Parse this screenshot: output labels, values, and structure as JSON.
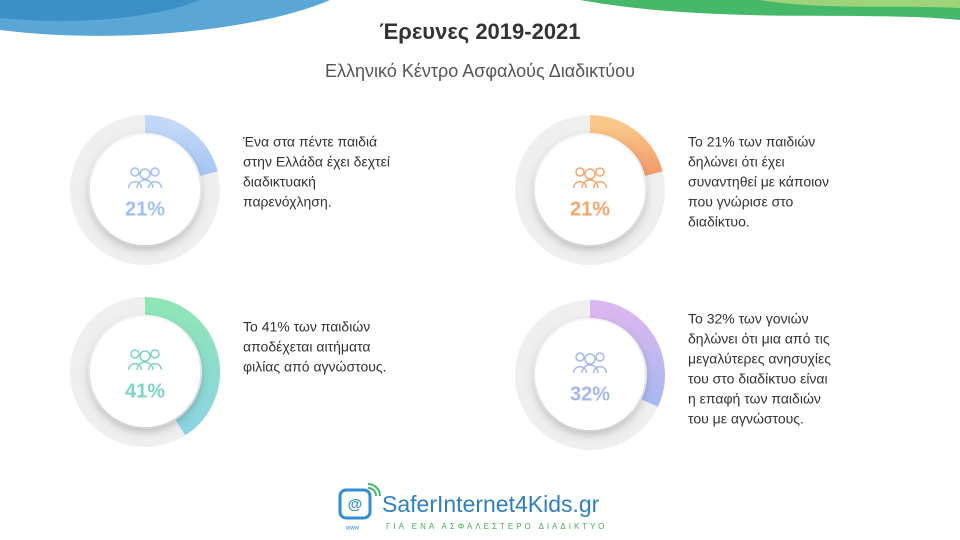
{
  "title": "Έρευνες 2019-2021",
  "subtitle": "Ελληνικό Κέντρο Ασφαλούς Διαδικτύου",
  "cards": [
    {
      "value": 21,
      "value_label": "21%",
      "colors": [
        "#c3d8f8",
        "#a6c6f3"
      ],
      "text_color": "#9fc0f0",
      "lines": [
        "Ένα στα πέντε παιδιά",
        "στην Ελλάδα  έχει δεχτεί",
        "διαδικτυακή",
        "παρενόχληση."
      ]
    },
    {
      "value": 21,
      "value_label": "21%",
      "colors": [
        "#f9c98a",
        "#f39a6a"
      ],
      "text_color": "#f4a66c",
      "lines": [
        "Το 21% των παιδιών",
        "δηλώνει ότι έχει",
        "συναντηθεί με κάποιον",
        "που γνώρισε στο",
        "διαδίκτυο."
      ]
    },
    {
      "value": 41,
      "value_label": "41%",
      "colors": [
        "#8ee6b6",
        "#8dd3e3"
      ],
      "text_color": "#7fd3c8",
      "lines": [
        "Το 41% των παιδιών",
        "αποδέχεται αιτήματα",
        "φιλίας από αγνώστους."
      ]
    },
    {
      "value": 32,
      "value_label": "32%",
      "colors": [
        "#dcb6ef",
        "#a8baf2"
      ],
      "text_color": "#a9b6ee",
      "lines": [
        "Το 32% των γονιών",
        "δηλώνει ότι μια από τις",
        "μεγαλύτερες ανησυχίες",
        "του στο διαδίκτυο είναι",
        "η επαφή των παιδιών",
        "του με αγνώστους."
      ]
    }
  ],
  "logo": {
    "icon": "@",
    "www": "www",
    "name": "SaferInternet4Kids.gr",
    "tagline": "ΓΙΑ ΕΝΑ ΑΣΦΑΛΕΣΤΕΡΟ ΔΙΑΔΙΚΤΥΟ"
  }
}
